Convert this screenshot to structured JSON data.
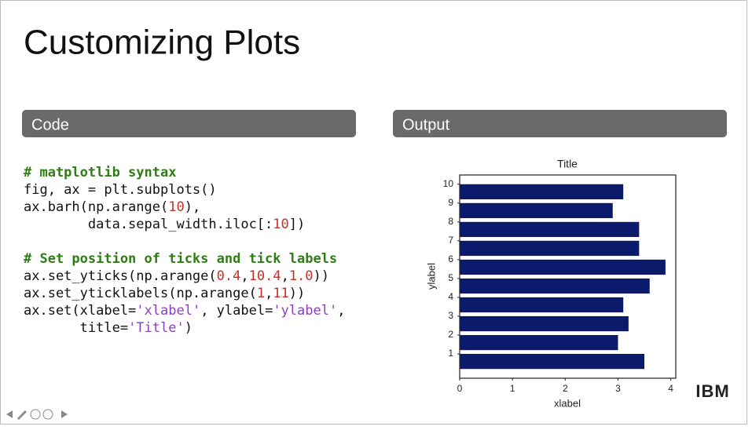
{
  "slide": {
    "title": "Customizing Plots",
    "code_header": "Code",
    "output_header": "Output",
    "logo": "IBM",
    "code": [
      [
        {
          "text": "# matplotlib syntax",
          "color": "#2f7d14"
        }
      ],
      [
        {
          "text": "fig, ax = plt.subplots()",
          "color": "#111111"
        }
      ],
      [
        {
          "text": "ax.barh(np.arange(",
          "color": "#111111"
        },
        {
          "text": "10",
          "color": "#c7302a"
        },
        {
          "text": "),",
          "color": "#111111"
        }
      ],
      [
        {
          "text": "        data.sepal_width.iloc[:",
          "color": "#111111"
        },
        {
          "text": "10",
          "color": "#c7302a"
        },
        {
          "text": "])",
          "color": "#111111"
        }
      ],
      [],
      [
        {
          "text": "# Set position of ticks and tick labels",
          "color": "#2f7d14"
        }
      ],
      [
        {
          "text": "ax.set_yticks(np.arange(",
          "color": "#111111"
        },
        {
          "text": "0.4",
          "color": "#c7302a"
        },
        {
          "text": ",",
          "color": "#111111"
        },
        {
          "text": "10.4",
          "color": "#c7302a"
        },
        {
          "text": ",",
          "color": "#111111"
        },
        {
          "text": "1.0",
          "color": "#c7302a"
        },
        {
          "text": "))",
          "color": "#111111"
        }
      ],
      [
        {
          "text": "ax.set_yticklabels(np.arange(",
          "color": "#111111"
        },
        {
          "text": "1",
          "color": "#c7302a"
        },
        {
          "text": ",",
          "color": "#111111"
        },
        {
          "text": "11",
          "color": "#c7302a"
        },
        {
          "text": "))",
          "color": "#111111"
        }
      ],
      [
        {
          "text": "ax.set(xlabel=",
          "color": "#111111"
        },
        {
          "text": "'xlabel'",
          "color": "#8a3fc0"
        },
        {
          "text": ", ylabel=",
          "color": "#111111"
        },
        {
          "text": "'ylabel'",
          "color": "#8a3fc0"
        },
        {
          "text": ",",
          "color": "#111111"
        }
      ],
      [
        {
          "text": "       title=",
          "color": "#111111"
        },
        {
          "text": "'Title'",
          "color": "#8a3fc0"
        },
        {
          "text": ")",
          "color": "#111111"
        }
      ]
    ]
  },
  "chart_data": {
    "type": "barh",
    "title": "Title",
    "x_label": "xlabel",
    "y_label": "ylabel",
    "y": [
      0,
      1,
      2,
      3,
      4,
      5,
      6,
      7,
      8,
      9
    ],
    "values": [
      3.5,
      3.0,
      3.2,
      3.1,
      3.6,
      3.9,
      3.4,
      3.4,
      2.9,
      3.1
    ],
    "color": "#0c1a6c",
    "xlim": [
      0,
      4.095
    ],
    "xticks": [
      0,
      1,
      2,
      3,
      4
    ],
    "ylim": [
      -0.89,
      9.89
    ],
    "yticks": [
      {
        "value": 0.4,
        "label": "1"
      },
      {
        "value": 1.4,
        "label": "2"
      },
      {
        "value": 2.4,
        "label": "3"
      },
      {
        "value": 3.4,
        "label": "4"
      },
      {
        "value": 4.4,
        "label": "5"
      },
      {
        "value": 5.4,
        "label": "6"
      },
      {
        "value": 6.4,
        "label": "7"
      },
      {
        "value": 7.4,
        "label": "8"
      },
      {
        "value": 8.4,
        "label": "9"
      },
      {
        "value": 9.4,
        "label": "10"
      }
    ],
    "grid": false
  }
}
